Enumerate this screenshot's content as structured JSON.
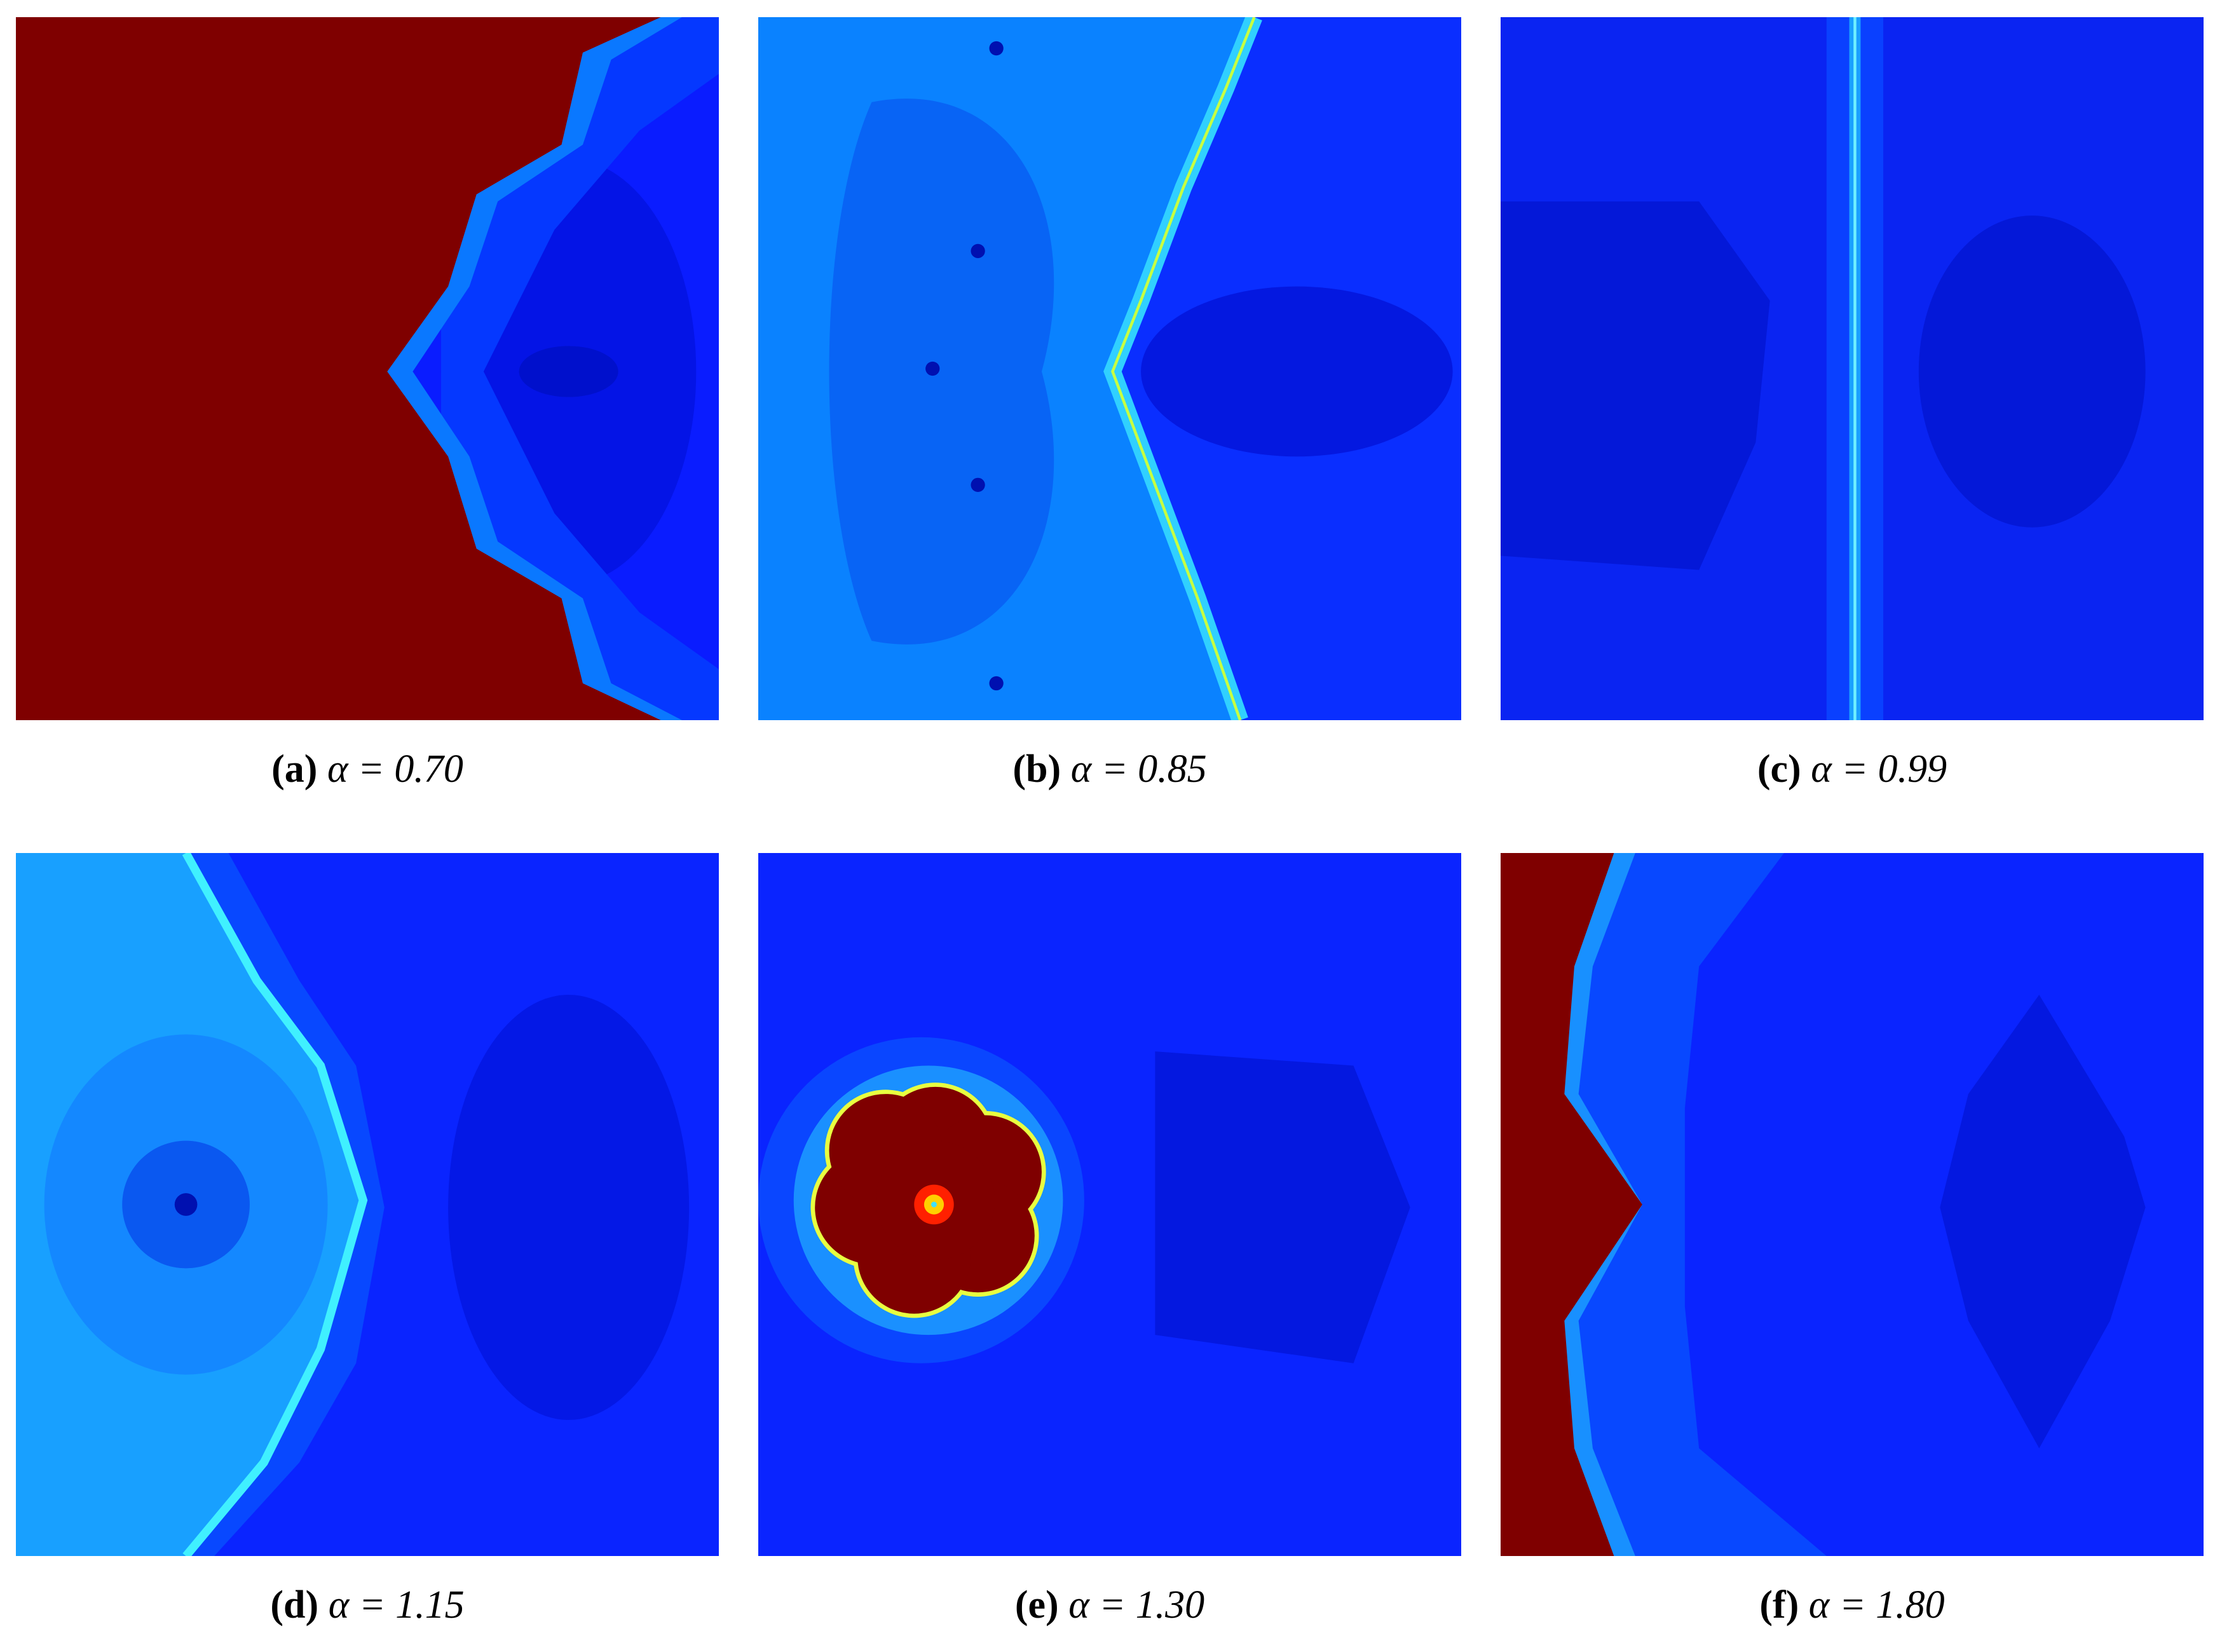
{
  "panels": [
    {
      "label": "(a)",
      "caption": "α = 0.70"
    },
    {
      "label": "(b)",
      "caption": "α = 0.85"
    },
    {
      "label": "(c)",
      "caption": "α = 0.99"
    },
    {
      "label": "(d)",
      "caption": "α = 1.15"
    },
    {
      "label": "(e)",
      "caption": "α = 1.30"
    },
    {
      "label": "(f)",
      "caption": "α = 1.80"
    }
  ]
}
